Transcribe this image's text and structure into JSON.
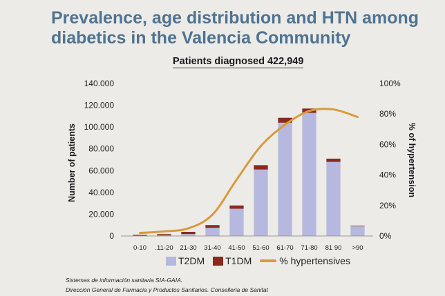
{
  "header": {
    "title": "Prevalence, age distribution and HTN among diabetics in the Valencia Community",
    "subtitle": "Patients diagnosed 422,949"
  },
  "source": {
    "line1": "Sistemas de información sanitaria SIA-GAIA.",
    "line2": "Dirección General de Farmacia y Productos Sanitarios. Conselleria de Sanitat"
  },
  "chart_data": {
    "type": "bar",
    "categories": [
      "0-10",
      ".11-20",
      "21-30",
      "31-40",
      "41-50",
      "51-60",
      "61-70",
      "71-80",
      "81 90",
      ">90"
    ],
    "ylabel": "Number of patients",
    "y2label": "% of hypertension",
    "ylim": [
      0,
      140000
    ],
    "y2lim": [
      0,
      100
    ],
    "yticks": [
      "0",
      "20.000",
      "40.000",
      "60.000",
      "80.000",
      "100.000",
      "120.000",
      "140.000"
    ],
    "y2ticks": [
      "0%",
      "20%",
      "40%",
      "60%",
      "80%",
      "100%"
    ],
    "stacked": true,
    "series": [
      {
        "name": "T2DM",
        "type": "bar",
        "axis": "left",
        "color": "#b6b8e0",
        "values": [
          200,
          500,
          1800,
          7500,
          25000,
          61000,
          104000,
          113000,
          68000,
          9000
        ]
      },
      {
        "name": "T1DM",
        "type": "bar",
        "axis": "left",
        "color": "#8a2a1e",
        "values": [
          800,
          1200,
          2000,
          2500,
          3000,
          4000,
          4500,
          4000,
          3000,
          500
        ]
      },
      {
        "name": "% hypertensives",
        "type": "line",
        "axis": "right",
        "color": "#d99a3a",
        "values": [
          2,
          3,
          5,
          14,
          37,
          59,
          73,
          82,
          83,
          78
        ]
      }
    ],
    "legend_position": "bottom",
    "grid": false
  }
}
